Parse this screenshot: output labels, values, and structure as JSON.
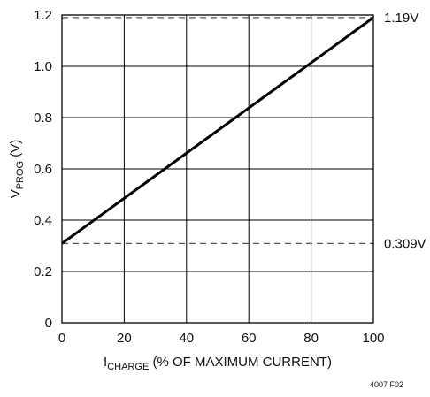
{
  "chart_data": {
    "type": "line",
    "xlabel": {
      "main": "I",
      "sub": "CHARGE",
      "rest": " (% OF MAXIMUM CURRENT)"
    },
    "ylabel": {
      "main": "V",
      "sub": "PROG",
      "rest": " (V)"
    },
    "xlim": [
      0,
      100
    ],
    "ylim": [
      0,
      1.2
    ],
    "x_ticks": [
      0,
      20,
      40,
      60,
      80,
      100
    ],
    "x_tick_labels": [
      "0",
      "20",
      "40",
      "60",
      "80",
      "100"
    ],
    "y_ticks": [
      0,
      0.2,
      0.4,
      0.6,
      0.8,
      1.0,
      1.2
    ],
    "y_tick_labels": [
      "0",
      "0.2",
      "0.4",
      "0.6",
      "0.8",
      "1.0",
      "1.2"
    ],
    "grid": true,
    "series": [
      {
        "x": [
          0,
          100
        ],
        "y": [
          0.309,
          1.19
        ],
        "color": "#000000",
        "style": "solid"
      }
    ],
    "reference_lines": [
      {
        "y": 1.19,
        "label": "1.19V",
        "style": "dashed",
        "color": "#555555"
      },
      {
        "y": 0.309,
        "label": "0.309V",
        "style": "dashed",
        "color": "#555555"
      }
    ],
    "figure_id": "4007 F02"
  }
}
